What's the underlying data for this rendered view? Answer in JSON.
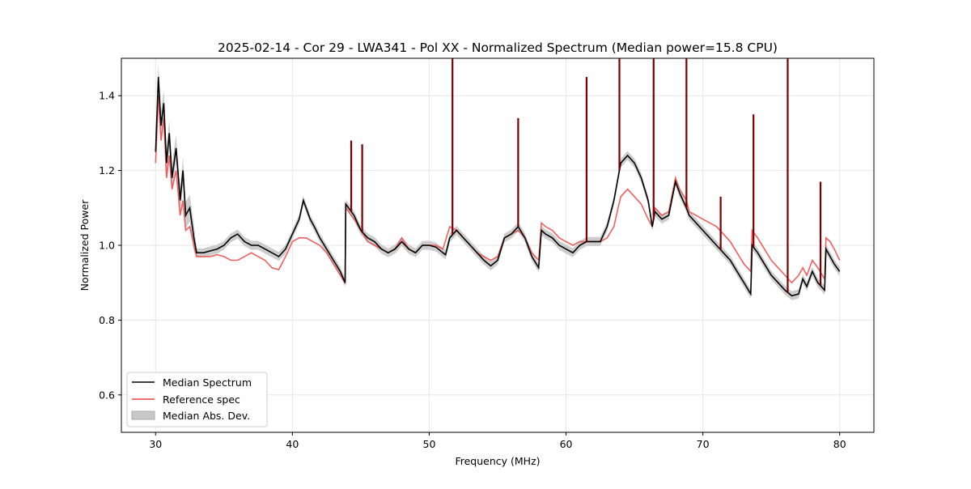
{
  "chart_data": {
    "type": "line",
    "title": "2025-02-14 - Cor 29 - LWA341 - Pol XX - Normalized Spectrum (Median power=15.8 CPU)",
    "xlabel": "Frequency (MHz)",
    "ylabel": "Normalized Power",
    "xlim": [
      27.5,
      82.5
    ],
    "ylim": [
      0.5,
      1.5
    ],
    "xticks": [
      30,
      40,
      50,
      60,
      70,
      80
    ],
    "xtick_labels": [
      "30",
      "40",
      "50",
      "60",
      "70",
      "80"
    ],
    "yticks": [
      0.6,
      0.8,
      1.0,
      1.2,
      1.4
    ],
    "ytick_labels": [
      "0.6",
      "0.8",
      "1.0",
      "1.2",
      "1.4"
    ],
    "grid": true,
    "legend_position": "lower-left",
    "legend": [
      "Median Spectrum",
      "Reference spec",
      "Median Abs. Dev."
    ],
    "colors": {
      "median": "#000000",
      "reference": "#ee4444",
      "mad_fill": "#c8c8c8",
      "spike": "#7a0000",
      "grid": "#e6e6e6"
    },
    "mad_halfwidth": 0.012,
    "series": [
      {
        "name": "Median Spectrum",
        "points": [
          [
            30.0,
            1.25
          ],
          [
            30.2,
            1.45
          ],
          [
            30.4,
            1.32
          ],
          [
            30.6,
            1.38
          ],
          [
            30.8,
            1.22
          ],
          [
            31.0,
            1.3
          ],
          [
            31.2,
            1.18
          ],
          [
            31.5,
            1.26
          ],
          [
            31.8,
            1.12
          ],
          [
            32.0,
            1.2
          ],
          [
            32.2,
            1.08
          ],
          [
            32.5,
            1.1
          ],
          [
            32.8,
            1.02
          ],
          [
            33.0,
            0.98
          ],
          [
            33.5,
            0.98
          ],
          [
            34.0,
            0.985
          ],
          [
            34.5,
            0.99
          ],
          [
            35.0,
            1.0
          ],
          [
            35.5,
            1.02
          ],
          [
            36.0,
            1.03
          ],
          [
            36.5,
            1.01
          ],
          [
            37.0,
            1.0
          ],
          [
            37.5,
            1.0
          ],
          [
            38.0,
            0.99
          ],
          [
            38.5,
            0.98
          ],
          [
            39.0,
            0.97
          ],
          [
            39.5,
            0.99
          ],
          [
            40.0,
            1.03
          ],
          [
            40.5,
            1.07
          ],
          [
            40.8,
            1.12
          ],
          [
            41.0,
            1.1
          ],
          [
            41.3,
            1.07
          ],
          [
            41.6,
            1.05
          ],
          [
            42.0,
            1.02
          ],
          [
            42.5,
            0.99
          ],
          [
            43.0,
            0.96
          ],
          [
            43.5,
            0.93
          ],
          [
            43.85,
            0.9
          ],
          [
            43.9,
            1.11
          ],
          [
            44.5,
            1.08
          ],
          [
            45.0,
            1.04
          ],
          [
            45.5,
            1.02
          ],
          [
            46.0,
            1.01
          ],
          [
            46.5,
            0.99
          ],
          [
            47.0,
            0.98
          ],
          [
            47.5,
            0.99
          ],
          [
            48.0,
            1.01
          ],
          [
            48.5,
            0.99
          ],
          [
            49.0,
            0.98
          ],
          [
            49.5,
            1.0
          ],
          [
            50.0,
            1.0
          ],
          [
            50.5,
            0.995
          ],
          [
            51.0,
            0.98
          ],
          [
            51.2,
            0.975
          ],
          [
            51.5,
            1.02
          ],
          [
            52.0,
            1.04
          ],
          [
            52.5,
            1.02
          ],
          [
            53.0,
            1.0
          ],
          [
            53.5,
            0.98
          ],
          [
            54.0,
            0.96
          ],
          [
            54.5,
            0.945
          ],
          [
            55.0,
            0.96
          ],
          [
            55.5,
            1.02
          ],
          [
            56.0,
            1.03
          ],
          [
            56.5,
            1.05
          ],
          [
            57.0,
            1.02
          ],
          [
            57.5,
            0.97
          ],
          [
            58.0,
            0.94
          ],
          [
            58.2,
            1.04
          ],
          [
            58.5,
            1.03
          ],
          [
            59.0,
            1.02
          ],
          [
            59.5,
            1.0
          ],
          [
            60.0,
            0.99
          ],
          [
            60.5,
            0.98
          ],
          [
            61.0,
            1.0
          ],
          [
            61.5,
            1.01
          ],
          [
            62.0,
            1.01
          ],
          [
            62.5,
            1.01
          ],
          [
            63.0,
            1.05
          ],
          [
            63.5,
            1.12
          ],
          [
            63.8,
            1.18
          ],
          [
            64.0,
            1.22
          ],
          [
            64.5,
            1.24
          ],
          [
            65.0,
            1.22
          ],
          [
            65.5,
            1.18
          ],
          [
            66.0,
            1.12
          ],
          [
            66.3,
            1.05
          ],
          [
            66.5,
            1.09
          ],
          [
            67.0,
            1.07
          ],
          [
            67.5,
            1.08
          ],
          [
            68.0,
            1.17
          ],
          [
            68.3,
            1.14
          ],
          [
            68.8,
            1.1
          ],
          [
            69.0,
            1.08
          ],
          [
            69.5,
            1.06
          ],
          [
            70.0,
            1.04
          ],
          [
            70.5,
            1.02
          ],
          [
            71.0,
            1.0
          ],
          [
            71.5,
            0.98
          ],
          [
            72.0,
            0.96
          ],
          [
            72.5,
            0.93
          ],
          [
            73.0,
            0.9
          ],
          [
            73.5,
            0.87
          ],
          [
            73.6,
            1.0
          ],
          [
            74.0,
            0.98
          ],
          [
            74.5,
            0.95
          ],
          [
            75.0,
            0.92
          ],
          [
            75.5,
            0.9
          ],
          [
            76.0,
            0.88
          ],
          [
            76.5,
            0.865
          ],
          [
            77.0,
            0.87
          ],
          [
            77.3,
            0.91
          ],
          [
            77.6,
            0.89
          ],
          [
            78.0,
            0.93
          ],
          [
            78.4,
            0.9
          ],
          [
            78.9,
            0.88
          ],
          [
            79.0,
            0.99
          ],
          [
            79.3,
            0.97
          ],
          [
            79.6,
            0.95
          ],
          [
            80.0,
            0.93
          ]
        ]
      },
      {
        "name": "Reference spec",
        "points": [
          [
            30.0,
            1.22
          ],
          [
            30.2,
            1.4
          ],
          [
            30.4,
            1.28
          ],
          [
            30.6,
            1.34
          ],
          [
            30.8,
            1.18
          ],
          [
            31.0,
            1.24
          ],
          [
            31.2,
            1.15
          ],
          [
            31.5,
            1.2
          ],
          [
            31.8,
            1.08
          ],
          [
            32.0,
            1.12
          ],
          [
            32.2,
            1.04
          ],
          [
            32.5,
            1.05
          ],
          [
            32.8,
            1.0
          ],
          [
            33.0,
            0.97
          ],
          [
            33.5,
            0.97
          ],
          [
            34.0,
            0.97
          ],
          [
            34.5,
            0.975
          ],
          [
            35.0,
            0.97
          ],
          [
            35.5,
            0.96
          ],
          [
            36.0,
            0.96
          ],
          [
            36.5,
            0.97
          ],
          [
            37.0,
            0.98
          ],
          [
            37.5,
            0.97
          ],
          [
            38.0,
            0.96
          ],
          [
            38.5,
            0.94
          ],
          [
            39.0,
            0.935
          ],
          [
            39.5,
            0.97
          ],
          [
            40.0,
            1.01
          ],
          [
            40.5,
            1.02
          ],
          [
            41.0,
            1.02
          ],
          [
            41.5,
            1.01
          ],
          [
            42.0,
            1.0
          ],
          [
            42.5,
            0.98
          ],
          [
            43.0,
            0.95
          ],
          [
            43.5,
            0.92
          ],
          [
            43.85,
            0.9
          ],
          [
            43.9,
            1.1
          ],
          [
            44.5,
            1.07
          ],
          [
            45.0,
            1.04
          ],
          [
            45.5,
            1.01
          ],
          [
            46.0,
            1.0
          ],
          [
            46.5,
            0.99
          ],
          [
            47.0,
            0.98
          ],
          [
            47.5,
            0.99
          ],
          [
            48.0,
            1.02
          ],
          [
            48.5,
            0.99
          ],
          [
            49.0,
            0.98
          ],
          [
            49.5,
            1.0
          ],
          [
            50.0,
            1.0
          ],
          [
            50.5,
            1.0
          ],
          [
            51.0,
            0.99
          ],
          [
            51.5,
            1.05
          ],
          [
            52.0,
            1.04
          ],
          [
            52.5,
            1.02
          ],
          [
            53.0,
            1.0
          ],
          [
            53.5,
            0.98
          ],
          [
            54.0,
            0.97
          ],
          [
            54.5,
            0.96
          ],
          [
            55.0,
            0.97
          ],
          [
            55.5,
            1.02
          ],
          [
            56.0,
            1.03
          ],
          [
            56.5,
            1.04
          ],
          [
            57.0,
            1.02
          ],
          [
            57.5,
            0.98
          ],
          [
            58.0,
            0.96
          ],
          [
            58.2,
            1.06
          ],
          [
            58.5,
            1.05
          ],
          [
            59.0,
            1.04
          ],
          [
            59.5,
            1.02
          ],
          [
            60.0,
            1.01
          ],
          [
            60.5,
            1.0
          ],
          [
            61.0,
            1.01
          ],
          [
            61.5,
            1.01
          ],
          [
            62.0,
            1.01
          ],
          [
            62.5,
            1.01
          ],
          [
            63.0,
            1.02
          ],
          [
            63.5,
            1.05
          ],
          [
            63.8,
            1.1
          ],
          [
            64.0,
            1.13
          ],
          [
            64.5,
            1.15
          ],
          [
            65.0,
            1.13
          ],
          [
            65.5,
            1.11
          ],
          [
            66.0,
            1.07
          ],
          [
            66.3,
            1.05
          ],
          [
            66.5,
            1.1
          ],
          [
            67.0,
            1.08
          ],
          [
            67.5,
            1.09
          ],
          [
            68.0,
            1.18
          ],
          [
            68.3,
            1.15
          ],
          [
            68.8,
            1.12
          ],
          [
            69.0,
            1.09
          ],
          [
            69.5,
            1.08
          ],
          [
            70.0,
            1.07
          ],
          [
            70.5,
            1.06
          ],
          [
            71.0,
            1.05
          ],
          [
            71.5,
            1.03
          ],
          [
            72.0,
            1.01
          ],
          [
            72.5,
            0.98
          ],
          [
            73.0,
            0.95
          ],
          [
            73.5,
            0.93
          ],
          [
            73.6,
            1.04
          ],
          [
            74.0,
            1.02
          ],
          [
            74.5,
            0.99
          ],
          [
            75.0,
            0.96
          ],
          [
            75.5,
            0.94
          ],
          [
            76.0,
            0.92
          ],
          [
            76.5,
            0.9
          ],
          [
            77.0,
            0.92
          ],
          [
            77.3,
            0.94
          ],
          [
            77.6,
            0.92
          ],
          [
            78.0,
            0.96
          ],
          [
            78.4,
            0.94
          ],
          [
            78.9,
            0.91
          ],
          [
            79.0,
            1.02
          ],
          [
            79.3,
            1.01
          ],
          [
            79.6,
            0.99
          ],
          [
            80.0,
            0.96
          ]
        ]
      }
    ],
    "spikes": [
      {
        "x": 44.3,
        "top": 1.28
      },
      {
        "x": 45.1,
        "top": 1.27
      },
      {
        "x": 51.7,
        "top": 1.5
      },
      {
        "x": 56.5,
        "top": 1.34
      },
      {
        "x": 61.5,
        "top": 1.45
      },
      {
        "x": 63.9,
        "top": 1.5
      },
      {
        "x": 66.4,
        "top": 1.5
      },
      {
        "x": 68.8,
        "top": 1.5
      },
      {
        "x": 71.3,
        "top": 1.13
      },
      {
        "x": 73.7,
        "top": 1.35
      },
      {
        "x": 76.2,
        "top": 1.5
      },
      {
        "x": 78.6,
        "top": 1.17
      }
    ]
  }
}
